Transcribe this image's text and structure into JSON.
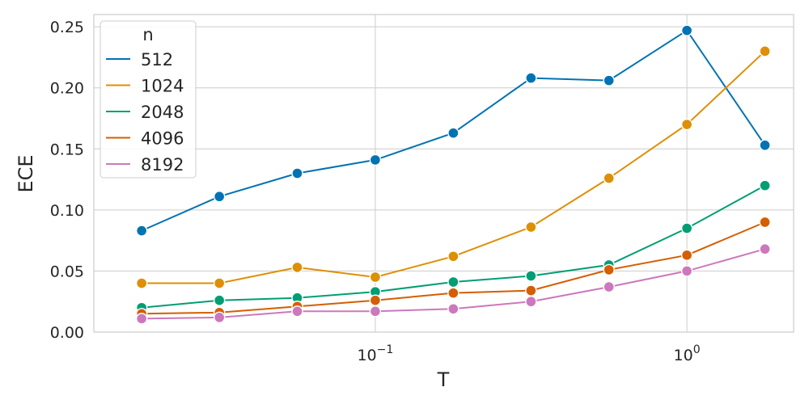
{
  "chart_data": {
    "type": "line",
    "xlabel": "T",
    "ylabel": "ECE",
    "x_scale": "log",
    "xlim": [
      0.0125,
      2.2
    ],
    "ylim": [
      0,
      0.26
    ],
    "x": [
      0.0178,
      0.0316,
      0.0562,
      0.1,
      0.178,
      0.316,
      0.562,
      1.0,
      1.78
    ],
    "y_ticks": [
      "0.00",
      "0.05",
      "0.10",
      "0.15",
      "0.20",
      "0.25"
    ],
    "y_tick_values": [
      0,
      0.05,
      0.1,
      0.15,
      0.2,
      0.25
    ],
    "x_ticks": [
      {
        "value": 0.1,
        "base": "10",
        "exp": "−1"
      },
      {
        "value": 1.0,
        "base": "10",
        "exp": "0"
      }
    ],
    "grid": true,
    "legend": {
      "title": "n",
      "placement": "top-left"
    },
    "series": [
      {
        "name": "512",
        "color": "#0173b2",
        "values": [
          0.083,
          0.111,
          0.13,
          0.141,
          0.163,
          0.208,
          0.206,
          0.247,
          0.153
        ]
      },
      {
        "name": "1024",
        "color": "#de8f05",
        "values": [
          0.04,
          0.04,
          0.053,
          0.045,
          0.062,
          0.086,
          0.126,
          0.17,
          0.23
        ]
      },
      {
        "name": "2048",
        "color": "#029e73",
        "values": [
          0.02,
          0.026,
          0.028,
          0.033,
          0.041,
          0.046,
          0.055,
          0.085,
          0.12
        ]
      },
      {
        "name": "4096",
        "color": "#d55e00",
        "values": [
          0.015,
          0.016,
          0.021,
          0.026,
          0.032,
          0.034,
          0.051,
          0.063,
          0.09
        ]
      },
      {
        "name": "8192",
        "color": "#cc78bc",
        "values": [
          0.011,
          0.012,
          0.017,
          0.017,
          0.019,
          0.025,
          0.037,
          0.05,
          0.068
        ]
      }
    ]
  }
}
